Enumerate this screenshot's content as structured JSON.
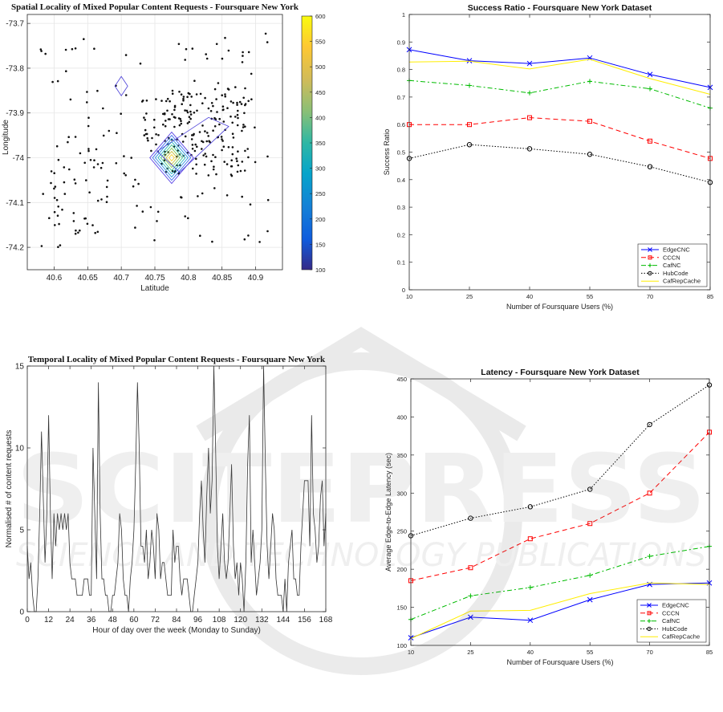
{
  "chart_data": [
    {
      "id": "spatial",
      "type": "scatter",
      "title": "Spatial Locality of Mixed Popular Content Requests - Foursquare New York",
      "xlabel": "Latitude",
      "ylabel": "Longitude",
      "xlim": [
        40.56,
        40.94
      ],
      "ylim": [
        -74.25,
        -73.68
      ],
      "xticks": [
        "40.6",
        "40.65",
        "40.7",
        "40.75",
        "40.8",
        "40.85",
        "40.9"
      ],
      "yticks": [
        "-73.7",
        "-73.8",
        "-73.9",
        "-74",
        "-74.1",
        "-74.2"
      ],
      "colorbar": {
        "min": 100,
        "max": 600,
        "ticks": [
          "600",
          "550",
          "500",
          "450",
          "400",
          "350",
          "300",
          "250",
          "200",
          "150",
          "100"
        ]
      },
      "grid": true
    },
    {
      "id": "success",
      "type": "line",
      "title": "Success Ratio - Foursquare New York Dataset",
      "xlabel": "Number of Foursquare Users (%)",
      "ylabel": "Success Ratio",
      "x": [
        10,
        25,
        40,
        55,
        70,
        85
      ],
      "ylim": [
        0,
        1
      ],
      "yticks": [
        "0",
        "0.1",
        "0.2",
        "0.3",
        "0.4",
        "0.5",
        "0.6",
        "0.7",
        "0.8",
        "0.9",
        "1"
      ],
      "legend_position": "bottom-right",
      "series": [
        {
          "name": "EdgeCNC",
          "color": "#0000ff",
          "marker": "x",
          "dash": "",
          "values": [
            0.872,
            0.832,
            0.822,
            0.842,
            0.782,
            0.735
          ]
        },
        {
          "name": "CCCN",
          "color": "#ff0000",
          "marker": "s",
          "dash": "6,4",
          "values": [
            0.6,
            0.6,
            0.625,
            0.612,
            0.54,
            0.477
          ]
        },
        {
          "name": "CafNC",
          "color": "#00bb00",
          "marker": "+",
          "dash": "6,3,2,3",
          "values": [
            0.76,
            0.742,
            0.715,
            0.757,
            0.73,
            0.66
          ]
        },
        {
          "name": "HubCode",
          "color": "#000000",
          "marker": "o",
          "dash": "1.5,2",
          "values": [
            0.477,
            0.527,
            0.512,
            0.492,
            0.447,
            0.39
          ]
        },
        {
          "name": "CafRepCache",
          "color": "#ffee00",
          "marker": "",
          "dash": "",
          "values": [
            0.827,
            0.83,
            0.802,
            0.837,
            0.767,
            0.71
          ]
        }
      ]
    },
    {
      "id": "temporal",
      "type": "line",
      "title": "Temporal Locality of Mixed Popular Content Requests - Foursquare New York",
      "xlabel": "Hour of day over the week (Monday to Sunday)",
      "ylabel": "Normalised # of content requests",
      "xlim": [
        0,
        168
      ],
      "ylim": [
        0,
        15
      ],
      "xticks": [
        "0",
        "12",
        "24",
        "36",
        "48",
        "60",
        "72",
        "84",
        "96",
        "108",
        "120",
        "132",
        "144",
        "156",
        "168"
      ],
      "yticks": [
        "0",
        "5",
        "10",
        "15"
      ],
      "series": [
        {
          "name": "",
          "color": "#333333",
          "values": [
            4,
            2,
            3,
            1,
            0,
            0,
            2,
            6,
            11,
            7,
            3,
            6,
            12,
            6,
            2,
            6,
            4,
            6,
            5,
            6,
            5,
            6,
            5,
            6,
            3,
            2,
            2,
            2,
            1,
            1,
            1,
            1,
            2,
            2,
            2,
            1,
            1,
            10,
            6,
            2,
            14,
            6,
            2,
            2,
            1,
            1,
            0,
            0,
            1,
            1,
            2,
            3,
            6,
            5,
            2,
            1,
            1,
            0,
            2,
            3,
            5,
            9,
            14,
            10,
            4,
            4,
            3,
            5,
            2,
            3,
            5,
            4,
            2,
            6,
            5,
            2,
            3,
            3,
            2,
            1,
            1,
            1,
            5,
            3,
            4,
            4,
            2,
            1,
            2,
            2,
            2,
            1,
            0,
            0,
            1,
            2,
            3,
            6,
            8,
            5,
            3,
            7,
            10,
            6,
            8,
            15,
            10,
            4,
            2,
            4,
            6,
            3,
            2,
            3,
            6,
            9,
            4,
            2,
            3,
            1,
            3,
            2,
            0,
            3,
            9,
            12,
            3,
            5,
            3,
            1,
            2,
            3,
            5,
            15,
            9,
            4,
            2,
            4,
            6,
            5,
            2,
            1,
            1,
            1,
            0,
            2,
            0,
            3,
            4,
            5,
            2,
            2,
            1,
            1,
            4,
            6,
            8,
            8,
            8,
            4,
            12,
            6,
            5,
            3,
            4,
            7,
            8,
            4,
            6
          ]
        }
      ]
    },
    {
      "id": "latency",
      "type": "line",
      "title": "Latency - Foursquare New York Dataset",
      "xlabel": "Number of Foursquare Users (%)",
      "ylabel": "Average Edge-to-Edge Latency (sec)",
      "x": [
        10,
        25,
        40,
        55,
        70,
        85
      ],
      "ylim": [
        100,
        450
      ],
      "yticks": [
        "100",
        "150",
        "200",
        "250",
        "300",
        "350",
        "400",
        "450"
      ],
      "legend_position": "bottom-right",
      "series": [
        {
          "name": "EdgeCNC",
          "color": "#0000ff",
          "marker": "x",
          "dash": "",
          "values": [
            110,
            137,
            133,
            160,
            180,
            182
          ]
        },
        {
          "name": "CCCN",
          "color": "#ff0000",
          "marker": "s",
          "dash": "6,4",
          "values": [
            185,
            202,
            240,
            260,
            300,
            380
          ]
        },
        {
          "name": "CafNC",
          "color": "#00bb00",
          "marker": "+",
          "dash": "6,3,2,3",
          "values": [
            134,
            165,
            176,
            192,
            217,
            230
          ]
        },
        {
          "name": "HubCode",
          "color": "#000000",
          "marker": "o",
          "dash": "1.5,2",
          "values": [
            244,
            267,
            282,
            305,
            390,
            442
          ]
        },
        {
          "name": "CafRepCache",
          "color": "#ffee00",
          "marker": "",
          "dash": "",
          "values": [
            109,
            145,
            146,
            168,
            182,
            180
          ]
        }
      ]
    }
  ],
  "watermark": {
    "main": "SCITEPRESS",
    "sub": "SCIENCE AND TECHNOLOGY PUBLICATIONS"
  }
}
